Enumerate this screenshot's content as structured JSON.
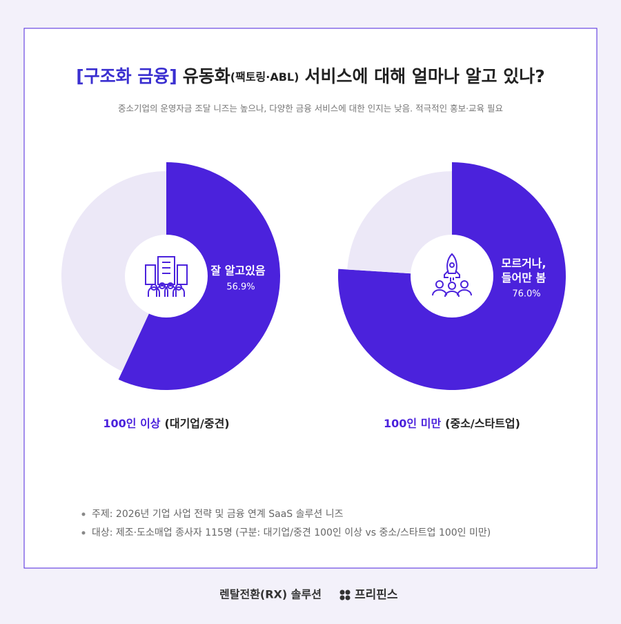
{
  "header": {
    "title": [
      "[구조화 금융]",
      "유동화",
      "(팩토링·ABL)",
      "서비스에 대해 얼마나 알고 있나?"
    ],
    "subtitle": "중소기업의 운영자금 조달 니즈는 높으나, 다양한 금융 서비스에 대한 인지는 낮음. 적극적인 홍보·교육 필요"
  },
  "chart_data": [
    {
      "type": "pie",
      "label": "100인 이상",
      "label_detail": "(대기업/중견)",
      "categories": [
        "잘 알고있음",
        null
      ],
      "values": [
        56.9,
        43.1
      ],
      "value_labels": [
        "56.9%",
        null
      ],
      "colors": [
        "#4b22dc",
        "#ece8f7"
      ]
    },
    {
      "type": "pie",
      "label": "100인 미만",
      "label_detail": "(중소/스타트업)",
      "categories": [
        "모르거나,\n들어만 봄",
        null
      ],
      "values": [
        76.0,
        24.0
      ],
      "value_labels": [
        "76.0%",
        null
      ],
      "colors": [
        "#4b22dc",
        "#ece8f7"
      ]
    }
  ],
  "notes": [
    "주제: 2026년 기업 사업 전략 및 금융 연계 SaaS 솔루션 니즈",
    "대상: 제조·도소매업 종사자 115명 (구분: 대기업/중견 100인 이상 vs 중소/스타트업 100인 미만)"
  ],
  "footer": {
    "text": "렌탈전환(RX) 솔루션",
    "brand": "프리핀스"
  }
}
